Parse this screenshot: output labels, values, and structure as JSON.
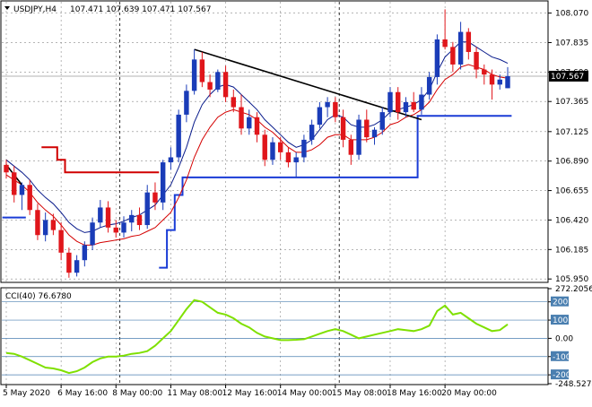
{
  "header": {
    "symbol": "USDJPY,H4",
    "ohlc": "107.471 107.639 107.471 107.567"
  },
  "price_axis": {
    "ticks": [
      "108.070",
      "107.835",
      "107.600",
      "107.365",
      "107.125",
      "106.890",
      "106.655",
      "106.420",
      "106.185",
      "105.950"
    ],
    "last_price": "107.567"
  },
  "cci_panel": {
    "label": "CCI(40) 76.6780",
    "ticks": [
      "272.2056",
      "200",
      "100",
      "0.00",
      "-100",
      "-200",
      "-248.5274"
    ]
  },
  "time_axis": {
    "labels": [
      "5 May 2020",
      "6 May 16:00",
      "8 May 00:00",
      "11 May 08:00",
      "12 May 16:00",
      "14 May 00:00",
      "15 May 08:00",
      "18 May 16:00",
      "20 May 00:00"
    ]
  },
  "colors": {
    "bull": "#1a3cb8",
    "bear": "#e0161b",
    "ma_fast": "#d40000",
    "ma_slow": "#0a1c8c",
    "stop_line": "#1a3cd6",
    "stop_line_red": "#d00000",
    "cci": "#7fe000",
    "grid": "#8a8a8a",
    "band": "#4a7fb0"
  },
  "chart_data": {
    "type": "candlestick",
    "title": "USDJPY,H4",
    "ylim": [
      105.93,
      108.16
    ],
    "candles": [
      {
        "o": 106.86,
        "h": 106.9,
        "l": 106.75,
        "c": 106.8
      },
      {
        "o": 106.8,
        "h": 106.85,
        "l": 106.56,
        "c": 106.62
      },
      {
        "o": 106.62,
        "h": 106.72,
        "l": 106.5,
        "c": 106.7
      },
      {
        "o": 106.7,
        "h": 106.74,
        "l": 106.46,
        "c": 106.5
      },
      {
        "o": 106.5,
        "h": 106.55,
        "l": 106.26,
        "c": 106.3
      },
      {
        "o": 106.3,
        "h": 106.48,
        "l": 106.25,
        "c": 106.42
      },
      {
        "o": 106.42,
        "h": 106.47,
        "l": 106.3,
        "c": 106.34
      },
      {
        "o": 106.34,
        "h": 106.4,
        "l": 106.1,
        "c": 106.16
      },
      {
        "o": 106.16,
        "h": 106.2,
        "l": 105.96,
        "c": 106.0
      },
      {
        "o": 106.0,
        "h": 106.14,
        "l": 105.97,
        "c": 106.1
      },
      {
        "o": 106.1,
        "h": 106.25,
        "l": 106.05,
        "c": 106.22
      },
      {
        "o": 106.22,
        "h": 106.44,
        "l": 106.18,
        "c": 106.4
      },
      {
        "o": 106.4,
        "h": 106.58,
        "l": 106.36,
        "c": 106.52
      },
      {
        "o": 106.52,
        "h": 106.57,
        "l": 106.32,
        "c": 106.36
      },
      {
        "o": 106.36,
        "h": 106.42,
        "l": 106.28,
        "c": 106.32
      },
      {
        "o": 106.32,
        "h": 106.45,
        "l": 106.28,
        "c": 106.4
      },
      {
        "o": 106.4,
        "h": 106.5,
        "l": 106.33,
        "c": 106.46
      },
      {
        "o": 106.46,
        "h": 106.52,
        "l": 106.34,
        "c": 106.38
      },
      {
        "o": 106.38,
        "h": 106.7,
        "l": 106.35,
        "c": 106.64
      },
      {
        "o": 106.64,
        "h": 106.72,
        "l": 106.5,
        "c": 106.56
      },
      {
        "o": 106.56,
        "h": 106.9,
        "l": 106.5,
        "c": 106.88
      },
      {
        "o": 106.88,
        "h": 107.0,
        "l": 106.82,
        "c": 106.92
      },
      {
        "o": 106.92,
        "h": 107.3,
        "l": 106.88,
        "c": 107.26
      },
      {
        "o": 107.26,
        "h": 107.5,
        "l": 107.2,
        "c": 107.45
      },
      {
        "o": 107.45,
        "h": 107.78,
        "l": 107.42,
        "c": 107.7
      },
      {
        "o": 107.7,
        "h": 107.76,
        "l": 107.48,
        "c": 107.52
      },
      {
        "o": 107.52,
        "h": 107.58,
        "l": 107.4,
        "c": 107.46
      },
      {
        "o": 107.46,
        "h": 107.62,
        "l": 107.44,
        "c": 107.6
      },
      {
        "o": 107.6,
        "h": 107.65,
        "l": 107.36,
        "c": 107.4
      },
      {
        "o": 107.4,
        "h": 107.46,
        "l": 107.28,
        "c": 107.32
      },
      {
        "o": 107.32,
        "h": 107.42,
        "l": 107.1,
        "c": 107.15
      },
      {
        "o": 107.15,
        "h": 107.3,
        "l": 107.1,
        "c": 107.24
      },
      {
        "o": 107.24,
        "h": 107.28,
        "l": 107.04,
        "c": 107.1
      },
      {
        "o": 107.1,
        "h": 107.14,
        "l": 106.85,
        "c": 106.9
      },
      {
        "o": 106.9,
        "h": 107.08,
        "l": 106.86,
        "c": 107.04
      },
      {
        "o": 107.04,
        "h": 107.08,
        "l": 106.9,
        "c": 106.96
      },
      {
        "o": 106.96,
        "h": 107.0,
        "l": 106.84,
        "c": 106.88
      },
      {
        "o": 106.88,
        "h": 106.96,
        "l": 106.76,
        "c": 106.92
      },
      {
        "o": 106.92,
        "h": 107.1,
        "l": 106.88,
        "c": 107.06
      },
      {
        "o": 107.06,
        "h": 107.22,
        "l": 107.02,
        "c": 107.18
      },
      {
        "o": 107.18,
        "h": 107.36,
        "l": 107.15,
        "c": 107.32
      },
      {
        "o": 107.32,
        "h": 107.4,
        "l": 107.24,
        "c": 107.36
      },
      {
        "o": 107.36,
        "h": 107.4,
        "l": 107.2,
        "c": 107.24
      },
      {
        "o": 107.24,
        "h": 107.3,
        "l": 107.0,
        "c": 107.06
      },
      {
        "o": 107.06,
        "h": 107.1,
        "l": 106.86,
        "c": 106.94
      },
      {
        "o": 106.94,
        "h": 107.26,
        "l": 106.9,
        "c": 107.22
      },
      {
        "o": 107.22,
        "h": 107.3,
        "l": 107.04,
        "c": 107.08
      },
      {
        "o": 107.08,
        "h": 107.16,
        "l": 107.02,
        "c": 107.14
      },
      {
        "o": 107.14,
        "h": 107.32,
        "l": 107.1,
        "c": 107.28
      },
      {
        "o": 107.28,
        "h": 107.48,
        "l": 107.24,
        "c": 107.44
      },
      {
        "o": 107.44,
        "h": 107.48,
        "l": 107.22,
        "c": 107.28
      },
      {
        "o": 107.28,
        "h": 107.4,
        "l": 107.24,
        "c": 107.36
      },
      {
        "o": 107.36,
        "h": 107.44,
        "l": 107.28,
        "c": 107.3
      },
      {
        "o": 107.3,
        "h": 107.48,
        "l": 107.26,
        "c": 107.42
      },
      {
        "o": 107.42,
        "h": 107.6,
        "l": 107.38,
        "c": 107.56
      },
      {
        "o": 107.56,
        "h": 107.9,
        "l": 107.5,
        "c": 107.86
      },
      {
        "o": 107.86,
        "h": 108.1,
        "l": 107.78,
        "c": 107.8
      },
      {
        "o": 107.8,
        "h": 107.84,
        "l": 107.6,
        "c": 107.66
      },
      {
        "o": 107.66,
        "h": 108.0,
        "l": 107.62,
        "c": 107.92
      },
      {
        "o": 107.92,
        "h": 107.95,
        "l": 107.7,
        "c": 107.76
      },
      {
        "o": 107.76,
        "h": 107.8,
        "l": 107.55,
        "c": 107.62
      },
      {
        "o": 107.62,
        "h": 107.66,
        "l": 107.5,
        "c": 107.58
      },
      {
        "o": 107.58,
        "h": 107.62,
        "l": 107.38,
        "c": 107.5
      },
      {
        "o": 107.5,
        "h": 107.58,
        "l": 107.46,
        "c": 107.54
      },
      {
        "o": 107.471,
        "h": 107.639,
        "l": 107.471,
        "c": 107.567
      }
    ],
    "ma_fast": [
      106.78,
      106.74,
      106.7,
      106.64,
      106.56,
      106.5,
      106.45,
      106.38,
      106.3,
      106.25,
      106.22,
      106.22,
      106.24,
      106.25,
      106.26,
      106.27,
      106.29,
      106.3,
      106.33,
      106.36,
      106.42,
      106.48,
      106.6,
      106.74,
      106.92,
      107.06,
      107.16,
      107.24,
      107.28,
      107.3,
      107.28,
      107.26,
      107.22,
      107.16,
      107.12,
      107.06,
      107.0,
      106.96,
      106.96,
      106.98,
      107.02,
      107.08,
      107.1,
      107.1,
      107.06,
      107.06,
      107.06,
      107.08,
      107.12,
      107.18,
      107.2,
      107.24,
      107.26,
      107.3,
      107.36,
      107.46,
      107.54,
      107.58,
      107.64,
      107.66,
      107.64,
      107.62,
      107.58,
      107.56,
      107.55
    ],
    "ma_slow": [
      106.9,
      106.85,
      106.8,
      106.74,
      106.66,
      106.6,
      106.55,
      106.48,
      106.4,
      106.35,
      106.32,
      106.33,
      106.36,
      106.38,
      106.39,
      106.41,
      106.44,
      106.46,
      106.5,
      106.54,
      106.62,
      106.7,
      106.84,
      107.0,
      107.2,
      107.34,
      107.42,
      107.48,
      107.5,
      107.48,
      107.42,
      107.36,
      107.3,
      107.22,
      107.16,
      107.1,
      107.04,
      107.0,
      107.02,
      107.06,
      107.14,
      107.22,
      107.26,
      107.24,
      107.18,
      107.16,
      107.16,
      107.18,
      107.22,
      107.28,
      107.3,
      107.32,
      107.34,
      107.38,
      107.46,
      107.6,
      107.72,
      107.78,
      107.84,
      107.84,
      107.8,
      107.76,
      107.72,
      107.7,
      107.67
    ],
    "stop_line_blue": [
      null,
      null,
      null,
      null,
      null,
      null,
      null,
      null,
      null,
      null,
      null,
      null,
      null,
      null,
      null,
      null,
      null,
      null,
      null,
      null,
      106.04,
      106.34,
      106.62,
      106.76,
      106.76,
      106.76,
      106.76,
      106.76,
      106.76,
      106.76,
      106.76,
      106.76,
      106.76,
      106.76,
      106.76,
      106.76,
      106.76,
      106.76,
      106.76,
      106.76,
      106.76,
      106.76,
      106.76,
      106.76,
      106.76,
      106.76,
      106.76,
      106.76,
      106.76,
      106.76,
      106.76,
      106.76,
      106.76,
      107.25,
      107.25,
      107.25,
      107.25,
      107.25,
      107.25,
      107.25,
      107.25,
      107.25,
      107.25,
      107.25,
      107.25
    ],
    "stop_line_blue_early": [
      106.44,
      106.44,
      106.44
    ],
    "stop_line_red": [
      null,
      null,
      null,
      null,
      null,
      107.0,
      107.0,
      106.9,
      106.8,
      106.8,
      106.8,
      106.8,
      106.8,
      106.8,
      106.8,
      106.8,
      106.8,
      106.8,
      106.8,
      106.8
    ],
    "trendlines": [
      {
        "from": [
          24,
          107.78
        ],
        "to": [
          53,
          107.22
        ]
      },
      {
        "from": [
          0,
          106.86
        ],
        "to": [
          2,
          106.7
        ]
      }
    ],
    "cci": [
      -80,
      -85,
      -100,
      -120,
      -140,
      -160,
      -165,
      -175,
      -190,
      -180,
      -160,
      -130,
      -110,
      -100,
      -100,
      -95,
      -85,
      -80,
      -70,
      -40,
      0,
      40,
      100,
      160,
      210,
      200,
      170,
      140,
      130,
      110,
      80,
      60,
      30,
      10,
      0,
      -10,
      -10,
      -8,
      -5,
      10,
      25,
      40,
      50,
      40,
      20,
      0,
      10,
      20,
      30,
      40,
      50,
      45,
      40,
      50,
      70,
      150,
      180,
      130,
      140,
      110,
      80,
      60,
      40,
      45,
      76.678
    ],
    "cci_ylim": [
      -248.5274,
      272.2056
    ],
    "cci_levels": [
      200,
      100,
      0,
      -100,
      -200
    ]
  }
}
